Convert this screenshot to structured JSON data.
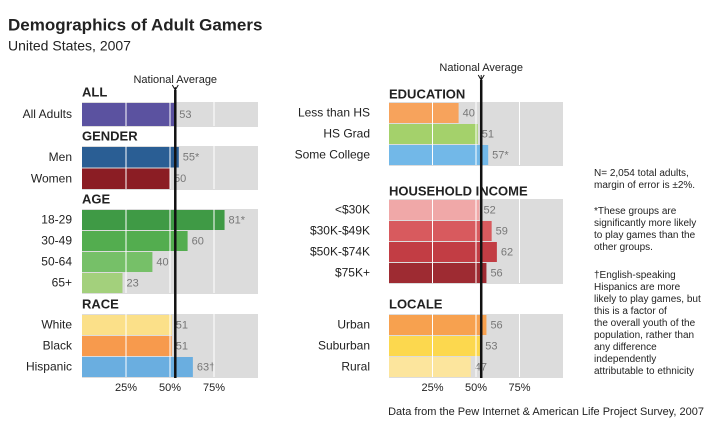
{
  "chart_data": {
    "type": "bar",
    "title": "Demographics of Adult Gamers",
    "subtitle": "United States, 2007",
    "xlim": [
      0,
      100
    ],
    "xticks": [
      {
        "value": 25,
        "label": "25%"
      },
      {
        "value": 50,
        "label": "50%"
      },
      {
        "value": 75,
        "label": "75%"
      }
    ],
    "grid": true,
    "reference": {
      "label": "National Average",
      "value": 53
    },
    "groups": [
      {
        "name": "ALL",
        "categories": [
          "All Adults"
        ],
        "values": [
          53
        ],
        "colors": [
          "#5b52a0"
        ]
      },
      {
        "name": "GENDER",
        "categories": [
          "Men",
          "Women"
        ],
        "values": [
          55,
          50
        ],
        "value_labels": [
          "55*",
          "50"
        ],
        "colors": [
          "#2a5e94",
          "#8b1d24"
        ]
      },
      {
        "name": "AGE",
        "categories": [
          "18-29",
          "30-49",
          "50-64",
          "65+"
        ],
        "values": [
          81,
          60,
          40,
          23
        ],
        "value_labels": [
          "81*",
          "60",
          "40",
          "23"
        ],
        "colors": [
          "#3f9a45",
          "#53ad4f",
          "#76c068",
          "#a3d07c"
        ]
      },
      {
        "name": "RACE",
        "categories": [
          "White",
          "Black",
          "Hispanic"
        ],
        "values": [
          51,
          51,
          63
        ],
        "value_labels": [
          "51",
          "51",
          "63†"
        ],
        "colors": [
          "#fbe089",
          "#f79a4d",
          "#6aaee0"
        ]
      },
      {
        "name": "EDUCATION",
        "categories": [
          "Less than HS",
          "HS Grad",
          "Some College"
        ],
        "values": [
          40,
          51,
          57
        ],
        "value_labels": [
          "40",
          "51",
          "57*"
        ],
        "colors": [
          "#f7a35c",
          "#a4d16b",
          "#72b8e8"
        ]
      },
      {
        "name": "HOUSEHOLD INCOME",
        "categories": [
          "<$30K",
          "$30K-$49K",
          "$50K-$74K",
          "$75K+"
        ],
        "values": [
          52,
          59,
          62,
          56
        ],
        "colors": [
          "#f0a8a8",
          "#d85a5e",
          "#c23d44",
          "#9e2b32"
        ]
      },
      {
        "name": "LOCALE",
        "categories": [
          "Urban",
          "Suburban",
          "Rural"
        ],
        "values": [
          56,
          53,
          47
        ],
        "colors": [
          "#f7a14f",
          "#fcd84e",
          "#fce59d"
        ]
      }
    ],
    "notes": [
      [
        "N= 2,054 total adults,",
        "margin of error is ±2%."
      ],
      [
        "*These groups are",
        "significantly more likely",
        "to play games than the",
        "other groups."
      ],
      [
        "†English-speaking",
        "Hispanics are more",
        "likely to play games, but",
        "this is a factor of",
        "the overall youth of the",
        "population, rather than",
        "any difference",
        "independently",
        "attributable to ethnicity"
      ]
    ],
    "source": "Data from the Pew Internet & American Life Project Survey, 2007"
  }
}
